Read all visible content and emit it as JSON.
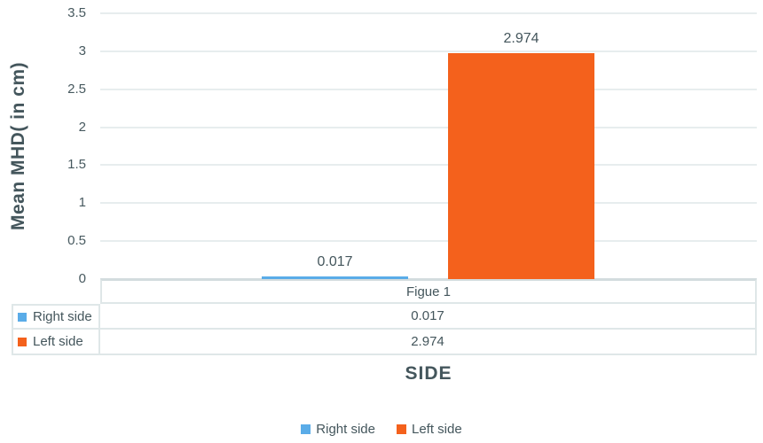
{
  "chart_data": {
    "type": "bar",
    "categories": [
      "Figue 1"
    ],
    "series": [
      {
        "name": "Right side",
        "values": [
          0.017
        ],
        "data_label": "0.017",
        "color": "#5aace8"
      },
      {
        "name": "Left side",
        "values": [
          2.974
        ],
        "data_label": "2.974",
        "color": "#f4611c"
      }
    ],
    "xlabel": "SIDE",
    "ylabel": "Mean MHD( in cm)",
    "ylim": [
      0,
      3.5
    ],
    "ytick_step": 0.5,
    "ytick_labels": [
      "3.5",
      "3",
      "2.5",
      "2",
      "1.5",
      "1",
      "0.5",
      "0"
    ],
    "grid": true,
    "legend_position": "bottom",
    "data_table": {
      "category_header": "Figue 1",
      "rows": [
        {
          "label": "Right side",
          "value": "0.017"
        },
        {
          "label": "Left side",
          "value": "2.974"
        }
      ]
    }
  },
  "colors": {
    "text": "#44565c",
    "gridline": "#e7edee",
    "axis_line": "#d3dcde",
    "table_border": "#dfe7e8"
  }
}
